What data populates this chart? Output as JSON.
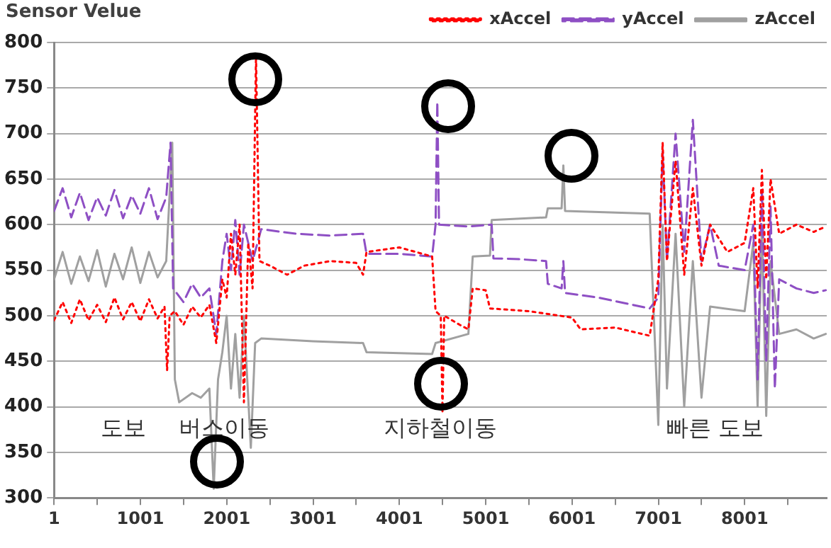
{
  "chart_data": {
    "type": "line",
    "ylabel": "Sensor Velue",
    "xlim": [
      1,
      8951
    ],
    "ylim": [
      300,
      800
    ],
    "xticks": [
      1,
      {
        "value": 501,
        "label": null
      },
      1001,
      {
        "value": 1501,
        "label": null
      },
      2001,
      {
        "value": 2501,
        "label": null
      },
      3001,
      {
        "value": 3501,
        "label": null
      },
      4001,
      {
        "value": 4501,
        "label": null
      },
      5001,
      {
        "value": 5501,
        "label": null
      },
      6001,
      {
        "value": 6501,
        "label": null
      },
      7001,
      {
        "value": 7501,
        "label": null
      },
      8001,
      {
        "value": 8501,
        "label": null
      }
    ],
    "yticks": [
      300,
      350,
      400,
      450,
      500,
      550,
      600,
      650,
      700,
      750,
      800
    ],
    "grid": "y",
    "legend": "top right",
    "marker": "none",
    "annotations": [
      "도보",
      "버스이동",
      "지하철이동",
      "빠른 도보"
    ],
    "series": [
      {
        "name": "xAccel",
        "color": "#ff0000",
        "line_style": "dotted",
        "x": [
          1,
          100,
          200,
          300,
          400,
          500,
          600,
          700,
          800,
          900,
          1000,
          1100,
          1200,
          1280,
          1310,
          1340,
          1400,
          1500,
          1600,
          1700,
          1800,
          1880,
          1950,
          2000,
          2050,
          2100,
          2150,
          2200,
          2250,
          2300,
          2340,
          2380,
          2500,
          2700,
          2900,
          3200,
          3500,
          3580,
          3620,
          4000,
          4380,
          4420,
          4480,
          4500,
          4520,
          4700,
          4800,
          4850,
          5000,
          5050,
          5500,
          6000,
          6100,
          6500,
          6900,
          7000,
          7050,
          7100,
          7200,
          7300,
          7400,
          7500,
          7600,
          7800,
          8000,
          8100,
          8150,
          8200,
          8250,
          8300,
          8400,
          8600,
          8800,
          8940
        ],
        "values": [
          495,
          515,
          492,
          518,
          495,
          512,
          493,
          520,
          496,
          515,
          494,
          518,
          497,
          510,
          440,
          500,
          505,
          490,
          510,
          498,
          512,
          470,
          540,
          520,
          590,
          545,
          600,
          405,
          580,
          530,
          785,
          560,
          555,
          545,
          555,
          560,
          558,
          545,
          570,
          575,
          565,
          505,
          500,
          395,
          500,
          490,
          485,
          530,
          528,
          508,
          505,
          498,
          485,
          487,
          478,
          540,
          690,
          560,
          670,
          545,
          640,
          555,
          600,
          570,
          580,
          640,
          530,
          660,
          540,
          650,
          590,
          600,
          592,
          598
        ]
      },
      {
        "name": "yAccel",
        "color": "#8e4fc4",
        "line_style": "dashed",
        "x": [
          1,
          100,
          200,
          300,
          400,
          500,
          600,
          700,
          800,
          900,
          1000,
          1100,
          1200,
          1300,
          1350,
          1380,
          1500,
          1600,
          1700,
          1800,
          1880,
          1950,
          2000,
          2050,
          2100,
          2150,
          2200,
          2300,
          2400,
          2800,
          3200,
          3580,
          3620,
          4000,
          4380,
          4420,
          4440,
          4460,
          4800,
          5070,
          5090,
          5400,
          5700,
          5720,
          5880,
          5900,
          5920,
          6300,
          6900,
          7000,
          7050,
          7100,
          7200,
          7300,
          7400,
          7500,
          7600,
          7700,
          8000,
          8100,
          8150,
          8200,
          8250,
          8300,
          8350,
          8400,
          8600,
          8800,
          8940
        ],
        "values": [
          615,
          640,
          608,
          635,
          605,
          630,
          610,
          638,
          607,
          632,
          612,
          640,
          606,
          630,
          690,
          530,
          515,
          535,
          520,
          530,
          480,
          560,
          590,
          550,
          605,
          545,
          600,
          560,
          595,
          590,
          588,
          590,
          568,
          568,
          565,
          600,
          735,
          600,
          598,
          600,
          563,
          562,
          560,
          535,
          530,
          560,
          525,
          520,
          508,
          520,
          680,
          560,
          700,
          570,
          715,
          560,
          600,
          555,
          550,
          600,
          430,
          640,
          450,
          620,
          420,
          540,
          530,
          525,
          528
        ]
      },
      {
        "name": "zAccel",
        "color": "#a0a0a0",
        "line_style": "solid",
        "x": [
          1,
          100,
          200,
          300,
          400,
          500,
          600,
          700,
          800,
          900,
          1000,
          1100,
          1200,
          1300,
          1370,
          1400,
          1450,
          1600,
          1700,
          1800,
          1850,
          1900,
          1950,
          2000,
          2050,
          2100,
          2150,
          2200,
          2280,
          2330,
          2400,
          3000,
          3580,
          3620,
          4380,
          4420,
          4800,
          4850,
          5050,
          5070,
          5700,
          5720,
          5880,
          5900,
          5920,
          6900,
          7000,
          7050,
          7100,
          7200,
          7300,
          7400,
          7500,
          7600,
          8000,
          8100,
          8150,
          8200,
          8250,
          8300,
          8400,
          8600,
          8800,
          8940
        ],
        "values": [
          540,
          570,
          535,
          565,
          538,
          572,
          532,
          568,
          540,
          575,
          536,
          570,
          542,
          560,
          690,
          430,
          405,
          415,
          410,
          420,
          310,
          430,
          460,
          500,
          420,
          480,
          410,
          500,
          355,
          470,
          475,
          472,
          470,
          460,
          458,
          470,
          480,
          565,
          566,
          605,
          608,
          618,
          618,
          665,
          615,
          612,
          380,
          600,
          420,
          590,
          400,
          560,
          410,
          510,
          505,
          580,
          400,
          600,
          390,
          560,
          480,
          485,
          475,
          480
        ]
      }
    ]
  }
}
